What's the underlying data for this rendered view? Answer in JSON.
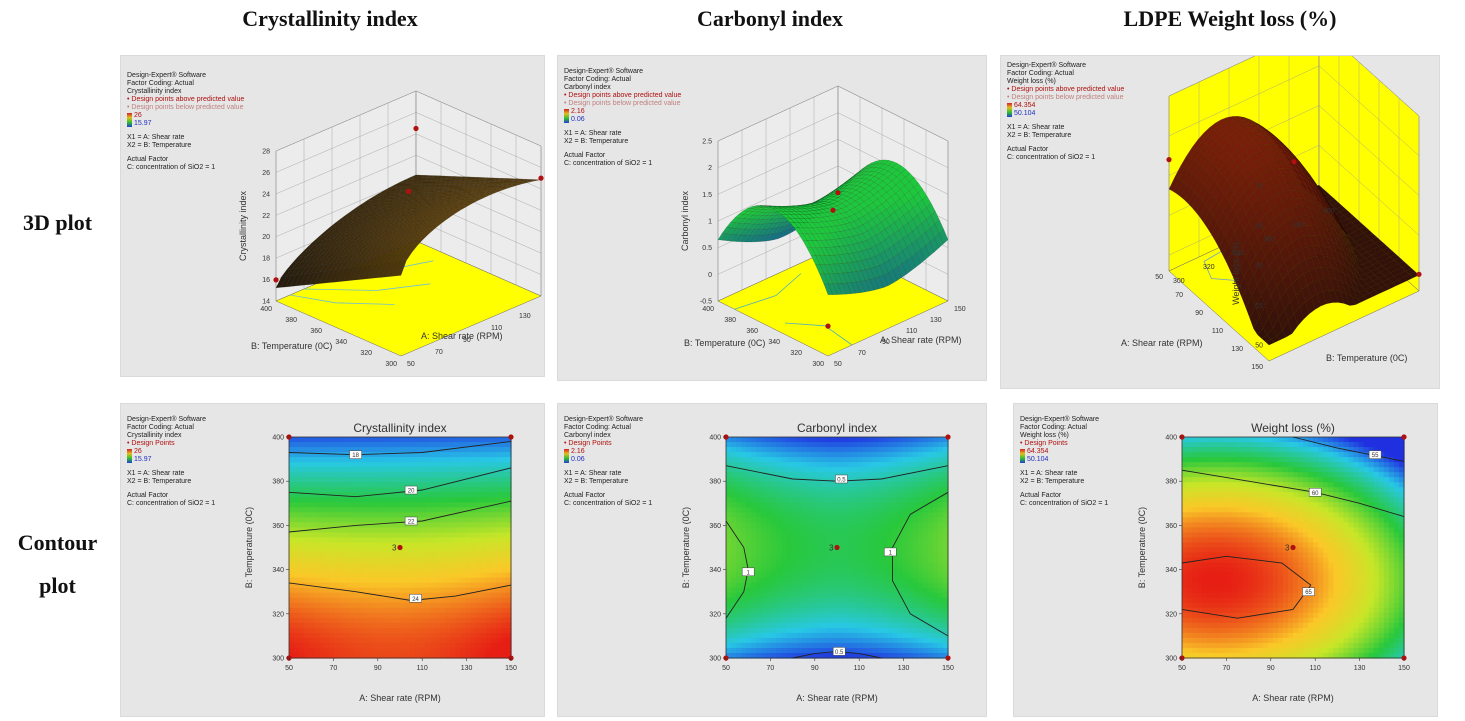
{
  "column_titles": [
    "Crystallinity index",
    "Carbonyl index",
    "LDPE Weight loss (%)"
  ],
  "row_labels": {
    "top": "3D plot",
    "bottom_line1": "Contour",
    "bottom_line2": "plot"
  },
  "colors": {
    "panel_bg": "#e6e6e6",
    "floor_yellow": "#ffff00",
    "design_point": "#b01010",
    "high": "#d62020",
    "low": "#2040d0"
  },
  "legends": {
    "crystallinity_3d": {
      "line1": "Design-Expert® Software",
      "line2": "Factor Coding: Actual",
      "line3": "Crystallinity index",
      "above": "• Design points above predicted value",
      "below": "• Design points below predicted value",
      "hi": "26",
      "lo": "15.97",
      "x1": "X1 = A: Shear rate",
      "x2": "X2 = B: Temperature",
      "actual": "Actual Factor",
      "conc": "C: concentration of SiO2 = 1"
    },
    "carbonyl_3d": {
      "line1": "Design-Expert® Software",
      "line2": "Factor Coding: Actual",
      "line3": "Carbonyl index",
      "above": "• Design points above predicted value",
      "below": "• Design points below predicted value",
      "hi": "2.16",
      "lo": "0.06",
      "x1": "X1 = A: Shear rate",
      "x2": "X2 = B: Temperature",
      "actual": "Actual Factor",
      "conc": "C: concentration of SiO2 = 1"
    },
    "weight_3d": {
      "line1": "Design-Expert® Software",
      "line2": "Factor Coding: Actual",
      "line3": "Weight loss (%)",
      "above": "• Design points above predicted value",
      "below": "• Design points below predicted value",
      "hi": "64.354",
      "lo": "50.104",
      "x1": "X1 = A: Shear rate",
      "x2": "X2 = B: Temperature",
      "actual": "Actual Factor",
      "conc": "C: concentration of SiO2 = 1"
    },
    "crystallinity_ct": {
      "line1": "Design-Expert® Software",
      "line2": "Factor Coding: Actual",
      "line3": "Crystallinity index",
      "points": "• Design Points",
      "hi": "26",
      "lo": "15.97",
      "x1": "X1 = A: Shear rate",
      "x2": "X2 = B: Temperature",
      "actual": "Actual Factor",
      "conc": "C: concentration of SiO2 = 1"
    },
    "carbonyl_ct": {
      "line1": "Design-Expert® Software",
      "line2": "Factor Coding: Actual",
      "line3": "Carbonyl index",
      "points": "• Design Points",
      "hi": "2.16",
      "lo": "0.06",
      "x1": "X1 = A: Shear rate",
      "x2": "X2 = B: Temperature",
      "actual": "Actual Factor",
      "conc": "C: concentration of SiO2 = 1"
    },
    "weight_ct": {
      "line1": "Design-Expert® Software",
      "line2": "Factor Coding: Actual",
      "line3": "Weight loss (%)",
      "points": "• Design Points",
      "hi": "64.354",
      "lo": "50.104",
      "x1": "X1 = A: Shear rate",
      "x2": "X2 = B: Temperature",
      "actual": "Actual Factor",
      "conc": "C: concentration of SiO2 = 1"
    }
  },
  "chart_data": [
    {
      "id": "crystallinity_3d",
      "type": "surface",
      "zlabel": "Crystallinity index",
      "xlabel": "A: Shear rate (RPM)",
      "ylabel": "B: Temperature (0C)",
      "x_ticks": [
        50,
        70,
        90,
        110,
        130,
        150
      ],
      "y_ticks": [
        300,
        320,
        340,
        360,
        380,
        400
      ],
      "z_ticks": [
        14,
        16,
        18,
        20,
        22,
        24,
        26,
        28
      ],
      "zlim": [
        14,
        28
      ],
      "design_points": [
        {
          "x": 50,
          "y": 400,
          "z": 15.97
        },
        {
          "x": 150,
          "y": 300,
          "z": 25
        },
        {
          "x": 100,
          "y": 350,
          "z": 24
        },
        {
          "x": 150,
          "y": 400,
          "z": 24.5
        }
      ]
    },
    {
      "id": "carbonyl_3d",
      "type": "surface",
      "zlabel": "Carbonyl index",
      "xlabel": "A: Shear rate (RPM)",
      "ylabel": "B: Temperature (0C)",
      "x_ticks": [
        50,
        70,
        90,
        110,
        130,
        150
      ],
      "y_ticks": [
        300,
        320,
        340,
        360,
        380,
        400
      ],
      "z_ticks": [
        -0.5,
        0,
        0.5,
        1,
        1.5,
        2,
        2.5
      ],
      "zlim": [
        -0.5,
        2.5
      ],
      "design_points": [
        {
          "x": 100,
          "y": 350,
          "z": 1.2
        },
        {
          "x": 150,
          "y": 400,
          "z": 0.5
        },
        {
          "x": 50,
          "y": 300,
          "z": 0.06
        }
      ]
    },
    {
      "id": "weight_3d",
      "type": "surface",
      "zlabel": "Weight loss (%)",
      "xlabel": "A: Shear rate (RPM)",
      "ylabel": "B: Temperature (0C)",
      "x_ticks": [
        50,
        70,
        90,
        110,
        130,
        150
      ],
      "y_ticks": [
        300,
        320,
        340,
        360,
        380,
        400
      ],
      "z_ticks": [
        50,
        55,
        60,
        65,
        70
      ],
      "zlim": [
        48,
        70
      ],
      "design_points": [
        {
          "x": 50,
          "y": 300,
          "z": 62
        },
        {
          "x": 100,
          "y": 350,
          "z": 63
        },
        {
          "x": 150,
          "y": 400,
          "z": 50.1
        }
      ]
    },
    {
      "id": "crystallinity_ct",
      "type": "contour",
      "title": "Crystallinity index",
      "xlabel": "A: Shear rate (RPM)",
      "ylabel": "B: Temperature (0C)",
      "xlim": [
        50,
        150
      ],
      "ylim": [
        300,
        400
      ],
      "x_ticks": [
        50,
        70,
        90,
        110,
        130,
        150
      ],
      "y_ticks": [
        300,
        320,
        340,
        360,
        380,
        400
      ],
      "contours": [
        {
          "label": "18",
          "points": [
            [
              50,
              393
            ],
            [
              80,
              392
            ],
            [
              110,
              393
            ],
            [
              150,
              398
            ]
          ]
        },
        {
          "label": "20",
          "points": [
            [
              50,
              375
            ],
            [
              80,
              373
            ],
            [
              110,
              376
            ],
            [
              150,
              386
            ]
          ]
        },
        {
          "label": "22",
          "points": [
            [
              50,
              357
            ],
            [
              80,
              360
            ],
            [
              110,
              362
            ],
            [
              150,
              371
            ]
          ]
        },
        {
          "label": "24",
          "points": [
            [
              50,
              334
            ],
            [
              80,
              330
            ],
            [
              105,
              326
            ],
            [
              125,
              328
            ],
            [
              150,
              333
            ]
          ]
        }
      ],
      "label_pos": [
        [
          80,
          392
        ],
        [
          105,
          376
        ],
        [
          105,
          362
        ],
        [
          107,
          327
        ]
      ],
      "design_points": [
        {
          "x": 50,
          "y": 400
        },
        {
          "x": 150,
          "y": 400
        },
        {
          "x": 50,
          "y": 300
        },
        {
          "x": 150,
          "y": 300
        },
        {
          "x": 100,
          "y": 350,
          "label": "3"
        }
      ],
      "heat": {
        "kind": "crystallinity"
      }
    },
    {
      "id": "carbonyl_ct",
      "type": "contour",
      "title": "Carbonyl index",
      "xlabel": "A: Shear rate (RPM)",
      "ylabel": "B: Temperature (0C)",
      "xlim": [
        50,
        150
      ],
      "ylim": [
        300,
        400
      ],
      "x_ticks": [
        50,
        70,
        90,
        110,
        130,
        150
      ],
      "y_ticks": [
        300,
        320,
        340,
        360,
        380,
        400
      ],
      "contours": [
        {
          "label": "0.5",
          "points": [
            [
              50,
              387
            ],
            [
              80,
              381
            ],
            [
              100,
              380
            ],
            [
              120,
              381
            ],
            [
              150,
              387
            ]
          ]
        },
        {
          "label": "1",
          "points": [
            [
              50,
              362
            ],
            [
              58,
              350
            ],
            [
              60,
              340
            ],
            [
              58,
              330
            ],
            [
              50,
              318
            ]
          ]
        },
        {
          "label": "1",
          "points": [
            [
              150,
              375
            ],
            [
              133,
              365
            ],
            [
              125,
              350
            ],
            [
              125,
              335
            ],
            [
              133,
              320
            ],
            [
              150,
              310
            ]
          ]
        },
        {
          "label": "0.5",
          "points": [
            [
              80,
              300
            ],
            [
              90,
              302
            ],
            [
              100,
              303
            ],
            [
              110,
              302
            ],
            [
              120,
              300
            ]
          ]
        }
      ],
      "label_pos": [
        [
          102,
          381
        ],
        [
          60,
          339
        ],
        [
          124,
          348
        ],
        [
          101,
          303
        ]
      ],
      "design_points": [
        {
          "x": 50,
          "y": 400
        },
        {
          "x": 150,
          "y": 400
        },
        {
          "x": 50,
          "y": 300
        },
        {
          "x": 150,
          "y": 300
        },
        {
          "x": 100,
          "y": 350,
          "label": "3"
        }
      ],
      "heat": {
        "kind": "carbonyl"
      }
    },
    {
      "id": "weight_ct",
      "type": "contour",
      "title": "Weight loss (%)",
      "xlabel": "A: Shear rate (RPM)",
      "ylabel": "B: Temperature (0C)",
      "xlim": [
        50,
        150
      ],
      "ylim": [
        300,
        400
      ],
      "x_ticks": [
        50,
        70,
        90,
        110,
        130,
        150
      ],
      "y_ticks": [
        300,
        320,
        340,
        360,
        380,
        400
      ],
      "contours": [
        {
          "label": "55",
          "points": [
            [
              100,
              400
            ],
            [
              120,
              395
            ],
            [
              135,
              392
            ],
            [
              150,
              389
            ]
          ]
        },
        {
          "label": "60",
          "points": [
            [
              50,
              385
            ],
            [
              80,
              380
            ],
            [
              110,
              375
            ],
            [
              130,
              370
            ],
            [
              150,
              364
            ]
          ]
        },
        {
          "label": "65",
          "points": [
            [
              50,
              343
            ],
            [
              70,
              346
            ],
            [
              95,
              343
            ],
            [
              108,
              333
            ],
            [
              100,
              322
            ],
            [
              75,
              318
            ],
            [
              50,
              322
            ]
          ]
        }
      ],
      "label_pos": [
        [
          137,
          392
        ],
        [
          110,
          375
        ],
        [
          107,
          330
        ]
      ],
      "design_points": [
        {
          "x": 50,
          "y": 400
        },
        {
          "x": 150,
          "y": 400
        },
        {
          "x": 50,
          "y": 300
        },
        {
          "x": 150,
          "y": 300
        },
        {
          "x": 100,
          "y": 350,
          "label": "3"
        }
      ],
      "heat": {
        "kind": "weight"
      }
    }
  ]
}
